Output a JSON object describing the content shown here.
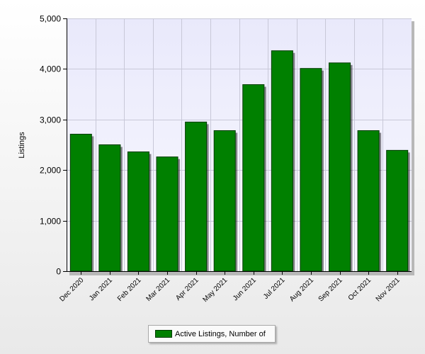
{
  "chart_data": {
    "type": "bar",
    "categories": [
      "Dec 2020",
      "Jan 2021",
      "Feb 2021",
      "Mar 2021",
      "Apr 2021",
      "May 2021",
      "Jun 2021",
      "Jul 2021",
      "Aug 2021",
      "Sep 2021",
      "Oct 2021",
      "Nov 2021"
    ],
    "series": [
      {
        "name": "Active Listings, Number of",
        "values": [
          2710,
          2500,
          2360,
          2260,
          2950,
          2780,
          3690,
          4360,
          4010,
          4120,
          2780,
          2390
        ]
      }
    ],
    "title": "",
    "xlabel": "",
    "ylabel": "Listings",
    "ylim": [
      0,
      5000
    ],
    "yticks": [
      0,
      1000,
      2000,
      3000,
      4000,
      5000
    ],
    "ytick_labels": [
      "0",
      "1,000",
      "2,000",
      "3,000",
      "4,000",
      "5,000"
    ],
    "grid": true,
    "legend_position": "bottom-center",
    "colors": {
      "bar": "#008000",
      "bar_border": "#003b00",
      "plot_background": "#eeeeff",
      "grid": "#c8c8d8"
    }
  }
}
